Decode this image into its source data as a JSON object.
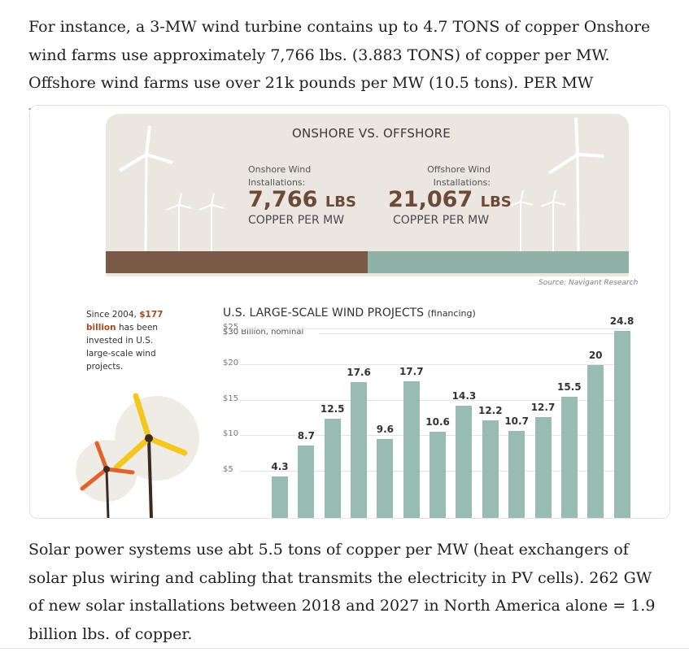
{
  "paragraph_top": "For instance, a 3-MW wind turbine contains up to 4.7 TONS of copper Onshore wind farms use approximately 7,766 lbs. (3.883 TONS) of copper per MW. Offshore wind farms use over 21k pounds per MW (10.5 tons). PER MW nameplate.",
  "paragraph_bottom": "Solar power systems use abt 5.5 tons of copper per MW (heat exchangers of solar plus wiring and cabling that transmits the electricity in PV cells). 262 GW of new solar installations between 2018 and 2027 in North America alone = 1.9 billion lbs. of copper.",
  "infographic": {
    "header": "ONSHORE VS. OFFSHORE",
    "onshore": {
      "label_line1": "Onshore Wind",
      "label_line2": "Installations:",
      "value": "7,766",
      "unit": "LBS",
      "sub": "COPPER PER MW"
    },
    "offshore": {
      "label_line1": "Offshore Wind",
      "label_line2": "Installations:",
      "value": "21,067",
      "unit": "LBS",
      "sub": "COPPER PER MW"
    },
    "source": "Source: Navigant Research",
    "since": {
      "pre": "Since 2004,",
      "bold1": "$177",
      "bold2": "billion",
      "post": "has been invested in U.S. large-scale wind projects."
    },
    "colors": {
      "onshore_ground": "#7a5a47",
      "offshore_ground": "#8fb1a8",
      "bars": "#98bcb1",
      "accent": "#a24c20",
      "turbine_yellow": "#f2c81f",
      "turbine_red": "#e0632d"
    }
  },
  "chart_data": {
    "type": "bar",
    "title": "U.S. LARGE-SCALE WIND PROJECTS",
    "title_suffix": "(financing)",
    "subtitle": "Billion, nominal",
    "y_ticks": [
      "$30",
      "$25",
      "$20",
      "$15",
      "$10",
      "$5"
    ],
    "ylim": [
      0,
      30
    ],
    "values": [
      4.3,
      8.7,
      12.5,
      17.6,
      9.6,
      17.7,
      10.6,
      14.3,
      12.2,
      10.7,
      12.7,
      15.5,
      20,
      24.8
    ],
    "labels": [
      "4.3",
      "8.7",
      "12.5",
      "17.6",
      "9.6",
      "17.7",
      "10.6",
      "14.3",
      "12.2",
      "10.7",
      "12.7",
      "15.5",
      "20",
      "24.8"
    ],
    "grid": true
  }
}
